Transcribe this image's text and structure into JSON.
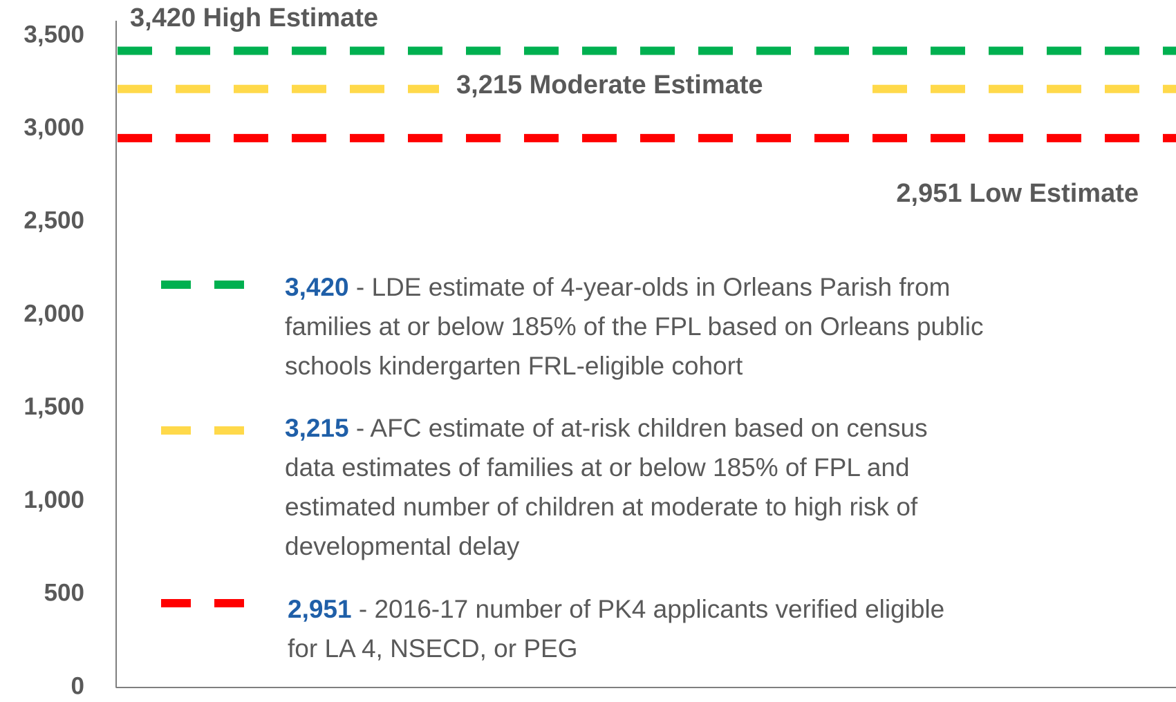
{
  "chart_data": {
    "type": "hline",
    "ylim": [
      0,
      3500
    ],
    "yticks": [
      0,
      500,
      {
        "value": 1000,
        "label": "1,000"
      },
      {
        "value": 1500,
        "label": "1,500"
      },
      {
        "value": 2000,
        "label": "2,000"
      },
      {
        "value": 2500,
        "label": "2,500"
      },
      {
        "value": 3000,
        "label": "3,000"
      },
      {
        "value": 3500,
        "label": "3,500"
      }
    ],
    "series": [
      {
        "name": "High Estimate",
        "color": "#00b050",
        "values": [
          3420
        ],
        "value_labels": [
          "3,420"
        ],
        "description": [
          "- LDE estimate of 4-year-olds in Orleans Parish from",
          "families at or below 185% of the FPL based on Orleans public",
          "schools kindergarten FRL-eligible cohort"
        ]
      },
      {
        "name": "Moderate Estimate",
        "color": "#ffd94a",
        "values": [
          3215
        ],
        "value_labels": [
          "3,215"
        ],
        "description": [
          "- AFC estimate of at-risk children based on census",
          "data estimates of families at or below 185% of FPL and",
          "estimated number of children at moderate to high risk of",
          "developmental delay"
        ]
      },
      {
        "name": "Low Estimate",
        "color": "#ff0000",
        "values": [
          2951
        ],
        "value_labels": [
          "2,951"
        ],
        "description": [
          "- 2016-17 number of PK4 applicants verified eligible",
          "for LA 4, NSECD, or PEG"
        ]
      }
    ]
  }
}
